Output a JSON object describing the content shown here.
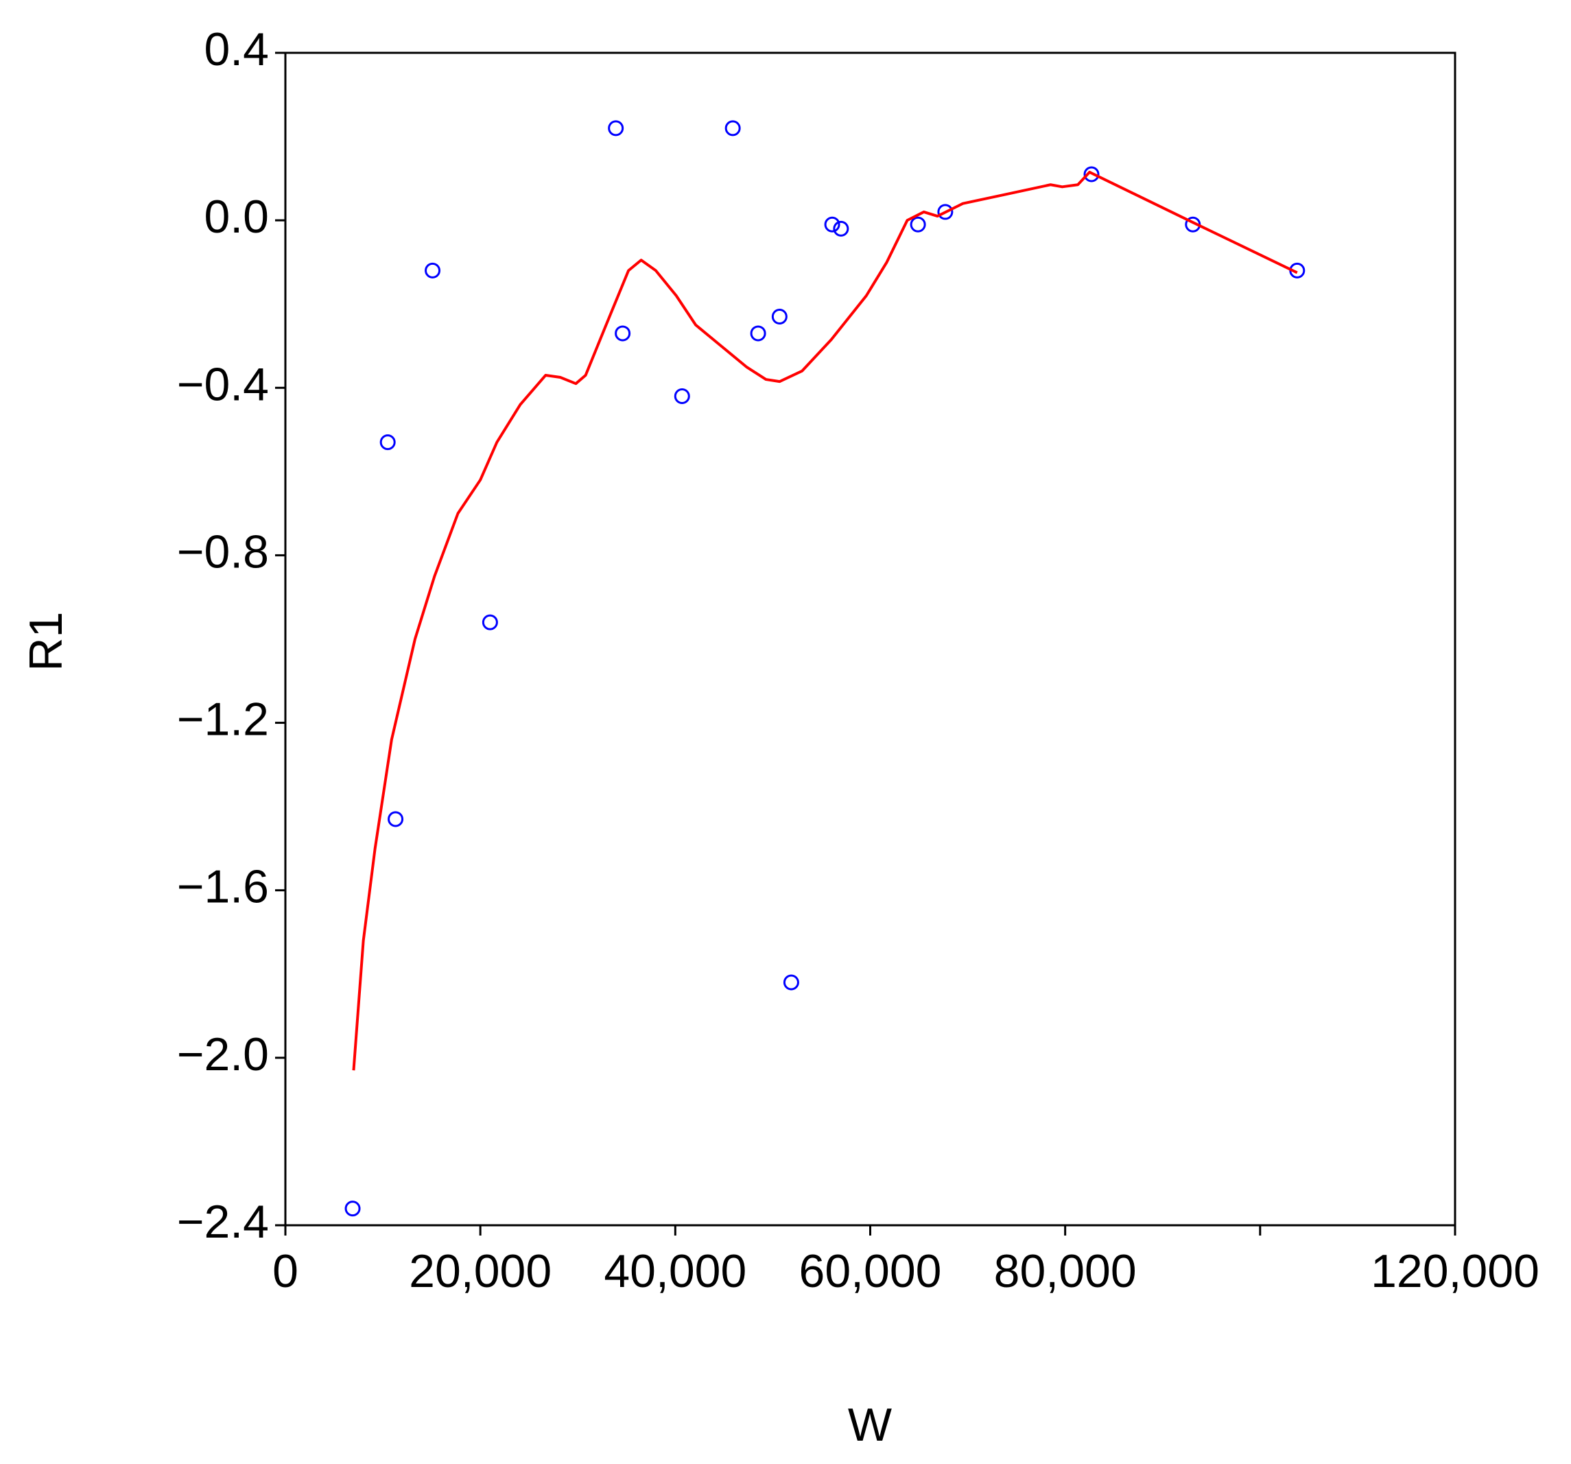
{
  "chart_data": {
    "type": "scatter",
    "x_label": "W",
    "y_label": "R1",
    "xlim": [
      0,
      120000
    ],
    "ylim": [
      -2.4,
      0.4
    ],
    "xticks": [
      0,
      {
        "value": 20000,
        "label": "20,000"
      },
      {
        "value": 40000,
        "label": "40,000"
      },
      {
        "value": 60000,
        "label": "60,000"
      },
      {
        "value": 80000,
        "label": "80,000"
      },
      {
        "value": 100000,
        "label": null
      },
      {
        "value": 120000,
        "label": "120,000"
      }
    ],
    "yticks": [
      0.4,
      {
        "value": 0,
        "label": "0.0"
      },
      {
        "value": -0.4,
        "label": "−0.4"
      },
      {
        "value": -0.8,
        "label": "−0.8"
      },
      {
        "value": -1.2,
        "label": "−1.2"
      },
      {
        "value": -1.6,
        "label": "−1.6"
      },
      {
        "value": -2.0,
        "label": "−2.0"
      },
      {
        "value": -2.4,
        "label": "−2.4"
      }
    ],
    "series": [
      {
        "type": "scatter",
        "color": "#0000ff",
        "x": [
          6900,
          10500,
          11300,
          15100,
          21000,
          33900,
          34600,
          40700,
          45900,
          48500,
          50700,
          51900,
          56100,
          57000,
          64900,
          67700,
          82700,
          93100,
          103800
        ],
        "values": [
          -2.36,
          -0.53,
          -1.43,
          -0.12,
          -0.96,
          0.22,
          -0.27,
          -0.42,
          0.22,
          -0.27,
          -0.23,
          -1.82,
          -0.01,
          -0.02,
          -0.01,
          0.02,
          0.11,
          -0.01,
          -0.12
        ]
      },
      {
        "type": "line",
        "color": "#ff0000",
        "x": [
          7000,
          8000,
          9200,
          10900,
          13300,
          15300,
          17700,
          20000,
          21700,
          24100,
          26700,
          28200,
          29800,
          30800,
          32900,
          35200,
          36500,
          38000,
          40100,
          42100,
          44700,
          47300,
          49300,
          50700,
          53000,
          56000,
          59600,
          61700,
          63800,
          65500,
          66900,
          69500,
          73500,
          78500,
          79700,
          81300,
          82500,
          93100,
          103800
        ],
        "values": [
          -2.03,
          -1.72,
          -1.5,
          -1.24,
          -1.0,
          -0.85,
          -0.7,
          -0.62,
          -0.53,
          -0.44,
          -0.37,
          -0.375,
          -0.39,
          -0.37,
          -0.25,
          -0.12,
          -0.095,
          -0.12,
          -0.18,
          -0.25,
          -0.3,
          -0.35,
          -0.38,
          -0.385,
          -0.36,
          -0.285,
          -0.18,
          -0.1,
          0.0,
          0.02,
          0.01,
          0.04,
          0.06,
          0.085,
          0.08,
          0.085,
          0.115,
          -0.005,
          -0.125
        ]
      }
    ]
  }
}
